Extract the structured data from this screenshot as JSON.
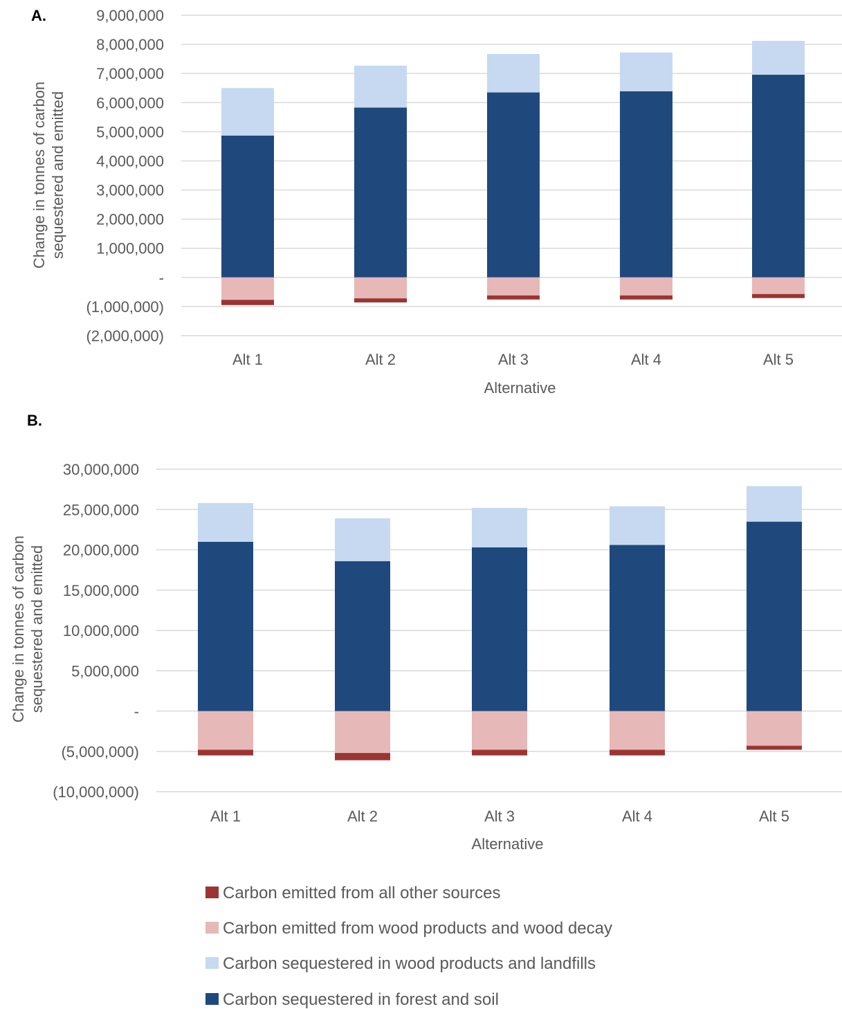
{
  "legend": [
    {
      "name": "Carbon emitted from all other sources",
      "color": "#9b3532"
    },
    {
      "name": "Carbon emitted from wood products and wood decay",
      "color": "#e6b8b7"
    },
    {
      "name": "Carbon sequestered in wood products and landfills",
      "color": "#c6d9f1"
    },
    {
      "name": "Carbon sequestered in forest and soil",
      "color": "#1f497d"
    }
  ],
  "chart_data": [
    {
      "panel": "A.",
      "type": "bar",
      "stacked": true,
      "categories": [
        "Alt 1",
        "Alt 2",
        "Alt 3",
        "Alt 4",
        "Alt 5"
      ],
      "xlabel": "Alternative",
      "ylabel": "Change in tonnes of carbon sequestered and emitted",
      "ylim": [
        -2000000,
        9000000
      ],
      "yticks": [
        9000000,
        8000000,
        7000000,
        6000000,
        5000000,
        4000000,
        3000000,
        2000000,
        1000000,
        0,
        -1000000,
        -2000000
      ],
      "ytick_labels": [
        "9,000,000",
        "8,000,000",
        "7,000,000",
        "6,000,000",
        "5,000,000",
        "4,000,000",
        "3,000,000",
        "2,000,000",
        "1,000,000",
        "-",
        "(1,000,000)",
        "(2,000,000)"
      ],
      "grid": true,
      "series": [
        {
          "name": "Carbon sequestered in forest and soil",
          "values": [
            4870000,
            5830000,
            6350000,
            6390000,
            6960000
          ]
        },
        {
          "name": "Carbon sequestered in wood products and landfills",
          "values": [
            1630000,
            1440000,
            1320000,
            1330000,
            1160000
          ]
        },
        {
          "name": "Carbon emitted from wood products and wood decay",
          "values": [
            -770000,
            -720000,
            -620000,
            -620000,
            -570000
          ]
        },
        {
          "name": "Carbon emitted from all other sources",
          "values": [
            -180000,
            -140000,
            -140000,
            -140000,
            -140000
          ]
        }
      ]
    },
    {
      "panel": "B.",
      "type": "bar",
      "stacked": true,
      "categories": [
        "Alt 1",
        "Alt 2",
        "Alt 3",
        "Alt 4",
        "Alt 5"
      ],
      "xlabel": "Alternative",
      "ylabel": "Change in tonnes of carbon sequestered and emitted",
      "ylim": [
        -10000000,
        30000000
      ],
      "yticks": [
        30000000,
        25000000,
        20000000,
        15000000,
        10000000,
        5000000,
        0,
        -5000000,
        -10000000
      ],
      "ytick_labels": [
        "30,000,000",
        "25,000,000",
        "20,000,000",
        "15,000,000",
        "10,000,000",
        "5,000,000",
        "-",
        "(5,000,000)",
        "(10,000,000)"
      ],
      "grid": true,
      "series": [
        {
          "name": "Carbon sequestered in forest and soil",
          "values": [
            21000000,
            18600000,
            20300000,
            20600000,
            23500000
          ]
        },
        {
          "name": "Carbon sequestered in wood products and landfills",
          "values": [
            4800000,
            5300000,
            4900000,
            4800000,
            4400000
          ]
        },
        {
          "name": "Carbon emitted from wood products and wood decay",
          "values": [
            -4800000,
            -5200000,
            -4800000,
            -4800000,
            -4300000
          ]
        },
        {
          "name": "Carbon emitted from all other sources",
          "values": [
            -700000,
            -900000,
            -700000,
            -700000,
            -500000
          ]
        }
      ]
    }
  ]
}
